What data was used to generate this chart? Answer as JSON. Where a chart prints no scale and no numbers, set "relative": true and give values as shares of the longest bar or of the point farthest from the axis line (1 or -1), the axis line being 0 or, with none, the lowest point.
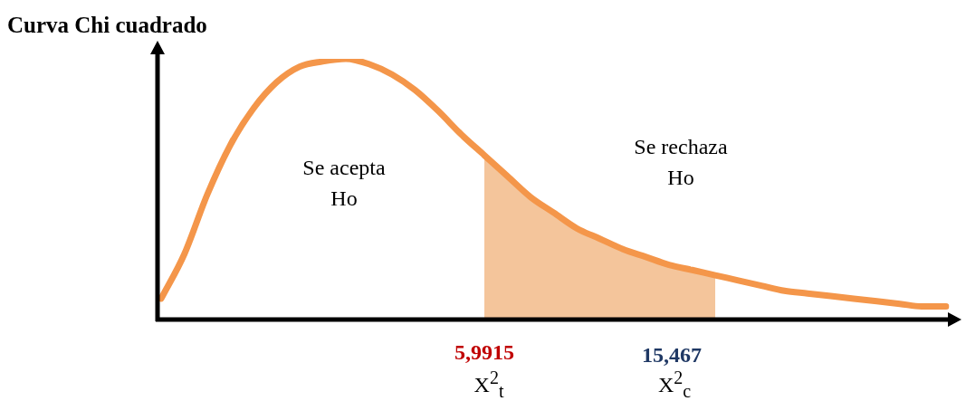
{
  "chart_data": {
    "type": "line",
    "title": "Curva Chi cuadrado",
    "relative": true,
    "legend": false,
    "grid": false,
    "marker": "none",
    "categories": [
      null,
      null,
      null,
      null,
      null,
      null,
      null,
      null,
      null,
      null,
      null,
      null,
      null,
      null,
      null,
      null,
      null,
      null,
      null,
      null,
      null,
      null,
      null,
      null,
      null,
      null,
      null,
      null,
      null,
      null,
      null,
      null,
      null,
      null,
      null
    ],
    "series": [
      {
        "color": "#f4964a",
        "values": [
          0.08,
          0.25,
          0.48,
          0.67,
          0.81,
          0.91,
          0.97,
          0.99,
          1.0,
          0.98,
          0.94,
          0.88,
          0.8,
          0.71,
          0.63,
          0.55,
          0.47,
          0.41,
          0.35,
          0.31,
          0.27,
          0.24,
          0.21,
          0.19,
          0.17,
          0.15,
          0.13,
          0.11,
          0.1,
          0.09,
          0.08,
          0.07,
          0.06,
          0.05,
          0.05
        ]
      },
      {
        "type": "area",
        "color": "#e67e22",
        "values": [
          null,
          null,
          null,
          null,
          null,
          null,
          null,
          null,
          null,
          null,
          null,
          null,
          null,
          null,
          0.63,
          0.55,
          0.47,
          0.41,
          0.35,
          0.31,
          0.27,
          0.24,
          0.21,
          0.19,
          0.17,
          null,
          null,
          null,
          null,
          null,
          null,
          null,
          null,
          null,
          null
        ]
      }
    ],
    "annotations": [
      "Se acepta Ho",
      "Se rechaza Ho",
      "5,9915",
      "15,467",
      "X$^{2}$$_{t}$",
      "X$^{2}$$_{c}$"
    ]
  }
}
